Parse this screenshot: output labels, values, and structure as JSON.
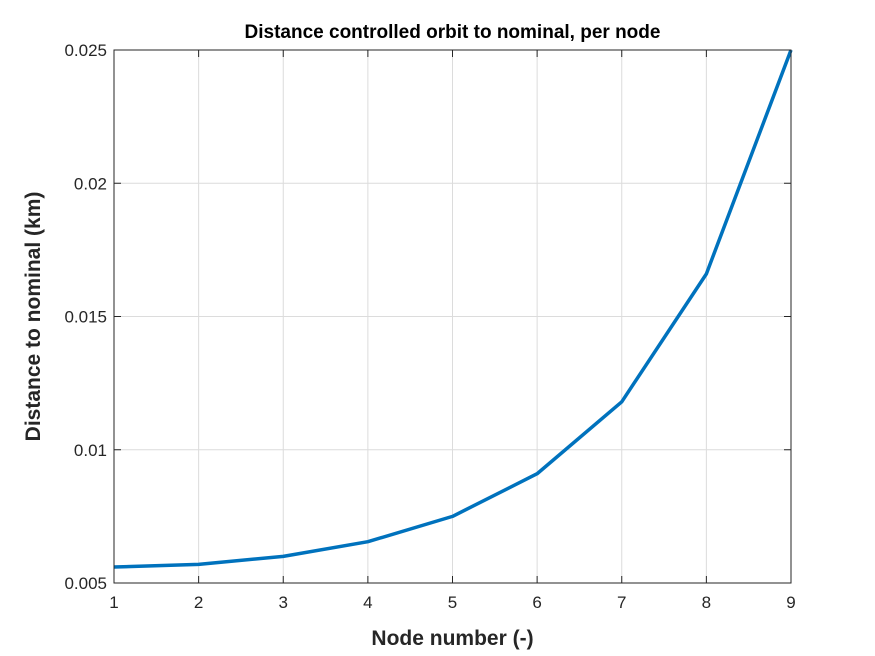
{
  "chart_data": {
    "type": "line",
    "title": "Distance controlled orbit to nominal, per node",
    "xlabel": "Node number (-)",
    "ylabel": "Distance to nominal (km)",
    "xlim": [
      1,
      9
    ],
    "ylim": [
      0.005,
      0.025
    ],
    "xticks": [
      1,
      2,
      3,
      4,
      5,
      6,
      7,
      8,
      9
    ],
    "xtick_labels": [
      "1",
      "2",
      "3",
      "4",
      "5",
      "6",
      "7",
      "8",
      "9"
    ],
    "yticks": [
      0.005,
      0.01,
      0.015,
      0.02,
      0.025
    ],
    "ytick_labels": [
      "0.005",
      "0.01",
      "0.015",
      "0.02",
      "0.025"
    ],
    "grid": true,
    "series": [
      {
        "color": "#0072BD",
        "x": [
          1,
          2,
          3,
          4,
          5,
          6,
          7,
          8,
          9
        ],
        "y": [
          0.0056,
          0.0057,
          0.006,
          0.00655,
          0.0075,
          0.0091,
          0.0118,
          0.0166,
          0.025
        ]
      }
    ]
  }
}
